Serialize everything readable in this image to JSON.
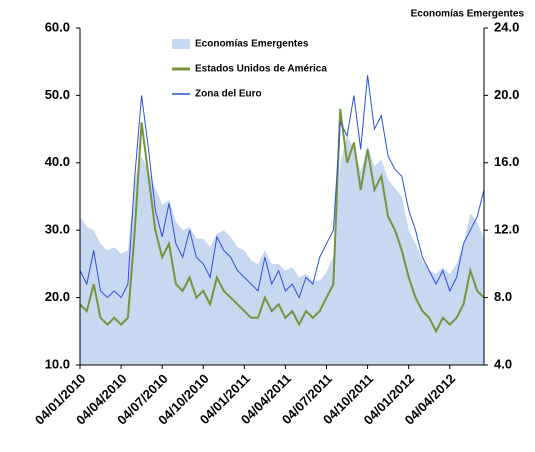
{
  "chart_data": {
    "type": "line",
    "y2_label": "Economías Emergentes",
    "categories": [
      "04/01/2010",
      null,
      null,
      null,
      null,
      null,
      "04/04/2010",
      null,
      null,
      null,
      null,
      null,
      "04/07/2010",
      null,
      null,
      null,
      null,
      null,
      "04/10/2010",
      null,
      null,
      null,
      null,
      null,
      "04/01/2011",
      null,
      null,
      null,
      null,
      null,
      "04/04/2011",
      null,
      null,
      null,
      null,
      null,
      "04/07/2011",
      null,
      null,
      null,
      null,
      null,
      "04/10/2011",
      null,
      null,
      null,
      null,
      null,
      "04/01/2012",
      null,
      null,
      null,
      null,
      null,
      "04/04/2012",
      null,
      null,
      null,
      null,
      null
    ],
    "series": [
      {
        "name": "Economías Emergentes",
        "type": "area",
        "axis": "y2",
        "color": "#c6d9f1",
        "values": [
          12.8,
          12.2,
          12.0,
          11.2,
          10.8,
          11.0,
          10.6,
          10.8,
          15.0,
          16.4,
          15.5,
          14.5,
          13.5,
          13.8,
          12.5,
          12.0,
          12.2,
          11.5,
          11.5,
          11.0,
          11.8,
          12.0,
          11.6,
          11.0,
          10.8,
          10.2,
          10.0,
          10.8,
          10.0,
          10.0,
          9.6,
          9.8,
          9.2,
          9.4,
          9.0,
          9.0,
          9.5,
          10.5,
          16.0,
          17.6,
          16.8,
          15.5,
          17.0,
          15.8,
          16.2,
          15.0,
          14.5,
          14.0,
          12.0,
          11.2,
          10.2,
          9.6,
          9.4,
          9.8,
          9.4,
          10.0,
          11.2,
          13.0,
          12.5,
          11.5
        ]
      },
      {
        "name": "Estados Unidos de América",
        "type": "line",
        "color": "#77933c",
        "values": [
          19,
          18,
          22,
          17,
          16,
          17,
          16,
          17,
          30,
          46,
          38,
          30,
          26,
          28,
          22,
          21,
          23,
          20,
          21,
          19,
          23,
          21,
          20,
          19,
          18,
          17,
          17,
          20,
          18,
          19,
          17,
          18,
          16,
          18,
          17,
          18,
          20,
          22,
          48,
          40,
          43,
          36,
          42,
          36,
          38,
          32,
          30,
          27,
          23,
          20,
          18,
          17,
          15,
          17,
          16,
          17,
          19,
          24,
          21,
          20
        ]
      },
      {
        "name": "Zona del Euro",
        "type": "line",
        "color": "#2b4fe0",
        "values": [
          24,
          22,
          27,
          21,
          20,
          21,
          20,
          22,
          38,
          50,
          42,
          33,
          29,
          34,
          28,
          26,
          30,
          26,
          25,
          23,
          29,
          27,
          26,
          24,
          23,
          22,
          21,
          26,
          22,
          24,
          21,
          22,
          20,
          23,
          22,
          26,
          28,
          30,
          46,
          44,
          50,
          42,
          53,
          45,
          47,
          41,
          39,
          38,
          33,
          30,
          26,
          24,
          22,
          24,
          21,
          23,
          28,
          30,
          32,
          36
        ]
      }
    ],
    "ylim": [
      10,
      60
    ],
    "yticks": [
      {
        "value": 10,
        "label": "10.0"
      },
      {
        "value": 20,
        "label": "20.0"
      },
      {
        "value": 30,
        "label": "30.0"
      },
      {
        "value": 40,
        "label": "40.0"
      },
      {
        "value": 50,
        "label": "50.0"
      },
      {
        "value": 60,
        "label": "60.0"
      }
    ],
    "y2lim": [
      4,
      24
    ],
    "y2ticks": [
      {
        "value": 4,
        "label": "4.0"
      },
      {
        "value": 8,
        "label": "8.0"
      },
      {
        "value": 12,
        "label": "12.0"
      },
      {
        "value": 16,
        "label": "16.0"
      },
      {
        "value": 20,
        "label": "20.0"
      },
      {
        "value": 24,
        "label": "24.0"
      }
    ]
  }
}
